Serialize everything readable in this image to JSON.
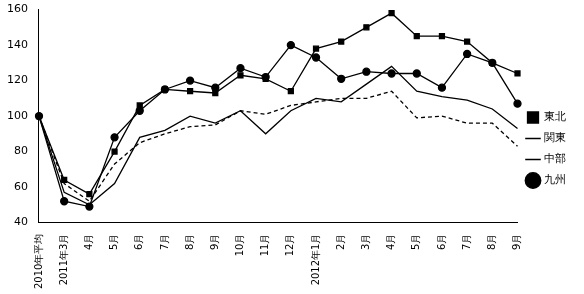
{
  "chart_data": {
    "type": "line",
    "categories": [
      "2010年平均",
      "2011年3月",
      "4月",
      "5月",
      "6月",
      "7月",
      "8月",
      "9月",
      "10月",
      "11月",
      "12月",
      "2012年1月",
      "2月",
      "3月",
      "4月",
      "5月",
      "6月",
      "7月",
      "8月",
      "9月"
    ],
    "series": [
      {
        "name": "東北",
        "color": "#000000",
        "marker": "square",
        "line_style": "solid",
        "values": [
          100,
          64,
          56,
          80,
          106,
          115,
          114,
          113,
          123,
          121,
          114,
          138,
          142,
          150,
          158,
          145,
          145,
          142,
          130,
          124
        ]
      },
      {
        "name": "関東",
        "color": "#000000",
        "marker": "none",
        "line_style": "dashed",
        "values": [
          100,
          62,
          52,
          73,
          85,
          90,
          94,
          95,
          103,
          101,
          106,
          108,
          110,
          110,
          114,
          99,
          100,
          96,
          96,
          83
        ]
      },
      {
        "name": "中部",
        "color": "#000000",
        "marker": "none",
        "line_style": "solid",
        "values": [
          100,
          57,
          50,
          62,
          88,
          92,
          100,
          96,
          103,
          90,
          103,
          110,
          108,
          118,
          128,
          114,
          111,
          109,
          104,
          93
        ]
      },
      {
        "name": "九州",
        "color": "#000000",
        "marker": "circle",
        "line_style": "solid",
        "values": [
          100,
          52,
          49,
          88,
          103,
          115,
          120,
          116,
          127,
          122,
          140,
          133,
          121,
          125,
          124,
          124,
          116,
          135,
          130,
          107
        ]
      }
    ],
    "ylim": [
      40,
      160
    ],
    "yticks": [
      40,
      60,
      80,
      100,
      120,
      140,
      160
    ],
    "grid": false,
    "legend": "right"
  }
}
